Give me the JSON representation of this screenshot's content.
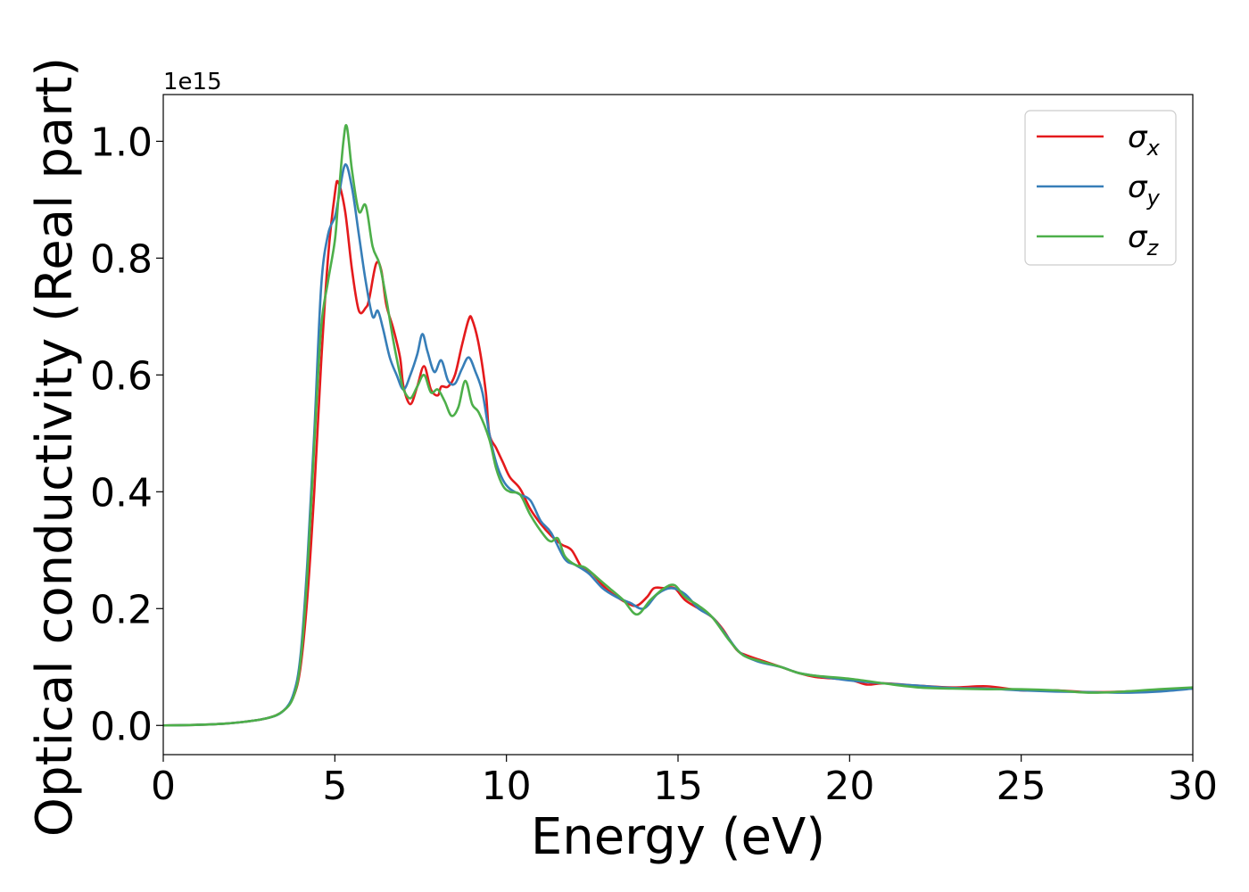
{
  "chart_data": {
    "type": "line",
    "xlabel": "Energy (eV)",
    "ylabel": "Optical conductivity (Real part)",
    "y_offset_label": "1e15",
    "xlim": [
      0,
      30
    ],
    "ylim": [
      -0.05,
      1.08
    ],
    "x_ticks": [
      0,
      5,
      10,
      15,
      20,
      25,
      30
    ],
    "x_tick_labels": [
      "0",
      "5",
      "10",
      "15",
      "20",
      "25",
      "30"
    ],
    "y_ticks": [
      0.0,
      0.2,
      0.4,
      0.6,
      0.8,
      1.0
    ],
    "y_tick_labels": [
      "0.0",
      "0.2",
      "0.4",
      "0.6",
      "0.8",
      "1.0"
    ],
    "grid": false,
    "legend_position": "top-right",
    "series": [
      {
        "name": "σ",
        "subscript": "x",
        "color": "#e41a1c",
        "points": [
          [
            0,
            0
          ],
          [
            1,
            0.001
          ],
          [
            2,
            0.004
          ],
          [
            3,
            0.012
          ],
          [
            3.5,
            0.025
          ],
          [
            3.8,
            0.05
          ],
          [
            4.0,
            0.1
          ],
          [
            4.2,
            0.22
          ],
          [
            4.4,
            0.4
          ],
          [
            4.6,
            0.62
          ],
          [
            4.8,
            0.8
          ],
          [
            5.0,
            0.91
          ],
          [
            5.1,
            0.93
          ],
          [
            5.3,
            0.88
          ],
          [
            5.5,
            0.78
          ],
          [
            5.7,
            0.71
          ],
          [
            5.9,
            0.715
          ],
          [
            6.0,
            0.73
          ],
          [
            6.2,
            0.79
          ],
          [
            6.35,
            0.78
          ],
          [
            6.5,
            0.72
          ],
          [
            6.7,
            0.68
          ],
          [
            6.9,
            0.63
          ],
          [
            7.0,
            0.58
          ],
          [
            7.2,
            0.55
          ],
          [
            7.4,
            0.58
          ],
          [
            7.6,
            0.615
          ],
          [
            7.8,
            0.575
          ],
          [
            8.0,
            0.565
          ],
          [
            8.1,
            0.58
          ],
          [
            8.3,
            0.58
          ],
          [
            8.5,
            0.6
          ],
          [
            8.7,
            0.65
          ],
          [
            8.9,
            0.695
          ],
          [
            9.0,
            0.695
          ],
          [
            9.2,
            0.65
          ],
          [
            9.4,
            0.57
          ],
          [
            9.5,
            0.5
          ],
          [
            9.7,
            0.475
          ],
          [
            9.9,
            0.45
          ],
          [
            10.1,
            0.425
          ],
          [
            10.4,
            0.405
          ],
          [
            10.7,
            0.37
          ],
          [
            11.0,
            0.345
          ],
          [
            11.3,
            0.325
          ],
          [
            11.6,
            0.31
          ],
          [
            11.9,
            0.3
          ],
          [
            12.2,
            0.27
          ],
          [
            12.5,
            0.26
          ],
          [
            12.8,
            0.24
          ],
          [
            13.1,
            0.225
          ],
          [
            13.5,
            0.21
          ],
          [
            13.8,
            0.205
          ],
          [
            14.1,
            0.22
          ],
          [
            14.3,
            0.235
          ],
          [
            14.6,
            0.235
          ],
          [
            14.9,
            0.235
          ],
          [
            15.2,
            0.215
          ],
          [
            15.6,
            0.2
          ],
          [
            16.0,
            0.185
          ],
          [
            16.3,
            0.165
          ],
          [
            16.7,
            0.13
          ],
          [
            17.0,
            0.12
          ],
          [
            17.5,
            0.11
          ],
          [
            18.0,
            0.1
          ],
          [
            18.5,
            0.09
          ],
          [
            19.0,
            0.083
          ],
          [
            20.0,
            0.078
          ],
          [
            20.5,
            0.07
          ],
          [
            21,
            0.072
          ],
          [
            22,
            0.068
          ],
          [
            23,
            0.065
          ],
          [
            24,
            0.067
          ],
          [
            25,
            0.06
          ],
          [
            26,
            0.06
          ],
          [
            27,
            0.057
          ],
          [
            28,
            0.058
          ],
          [
            29,
            0.06
          ],
          [
            29.5,
            0.063
          ],
          [
            30,
            0.063
          ]
        ]
      },
      {
        "name": "σ",
        "subscript": "y",
        "color": "#377eb8",
        "points": [
          [
            0,
            0
          ],
          [
            1,
            0.001
          ],
          [
            2,
            0.004
          ],
          [
            3,
            0.012
          ],
          [
            3.5,
            0.025
          ],
          [
            3.8,
            0.055
          ],
          [
            4.0,
            0.12
          ],
          [
            4.2,
            0.28
          ],
          [
            4.4,
            0.5
          ],
          [
            4.6,
            0.75
          ],
          [
            4.8,
            0.84
          ],
          [
            5.0,
            0.87
          ],
          [
            5.1,
            0.9
          ],
          [
            5.3,
            0.96
          ],
          [
            5.5,
            0.92
          ],
          [
            5.7,
            0.84
          ],
          [
            5.9,
            0.76
          ],
          [
            6.1,
            0.7
          ],
          [
            6.25,
            0.71
          ],
          [
            6.4,
            0.68
          ],
          [
            6.6,
            0.63
          ],
          [
            6.8,
            0.6
          ],
          [
            7.0,
            0.575
          ],
          [
            7.2,
            0.6
          ],
          [
            7.4,
            0.635
          ],
          [
            7.55,
            0.67
          ],
          [
            7.7,
            0.64
          ],
          [
            7.9,
            0.605
          ],
          [
            8.1,
            0.625
          ],
          [
            8.3,
            0.59
          ],
          [
            8.5,
            0.585
          ],
          [
            8.7,
            0.61
          ],
          [
            8.9,
            0.63
          ],
          [
            9.1,
            0.605
          ],
          [
            9.3,
            0.57
          ],
          [
            9.5,
            0.5
          ],
          [
            9.7,
            0.45
          ],
          [
            9.9,
            0.42
          ],
          [
            10.1,
            0.405
          ],
          [
            10.4,
            0.395
          ],
          [
            10.7,
            0.385
          ],
          [
            11.0,
            0.35
          ],
          [
            11.3,
            0.33
          ],
          [
            11.7,
            0.285
          ],
          [
            12.0,
            0.275
          ],
          [
            12.4,
            0.26
          ],
          [
            12.8,
            0.235
          ],
          [
            13.2,
            0.22
          ],
          [
            13.6,
            0.21
          ],
          [
            14.0,
            0.2
          ],
          [
            14.4,
            0.225
          ],
          [
            14.8,
            0.235
          ],
          [
            15.2,
            0.225
          ],
          [
            15.6,
            0.2
          ],
          [
            16.0,
            0.185
          ],
          [
            16.4,
            0.155
          ],
          [
            16.8,
            0.125
          ],
          [
            17.3,
            0.11
          ],
          [
            18.0,
            0.1
          ],
          [
            18.5,
            0.09
          ],
          [
            19.0,
            0.085
          ],
          [
            20.0,
            0.077
          ],
          [
            21,
            0.072
          ],
          [
            22,
            0.068
          ],
          [
            23,
            0.064
          ],
          [
            24,
            0.063
          ],
          [
            25,
            0.06
          ],
          [
            26,
            0.058
          ],
          [
            27,
            0.057
          ],
          [
            28,
            0.056
          ],
          [
            29,
            0.058
          ],
          [
            30,
            0.063
          ]
        ]
      },
      {
        "name": "σ",
        "subscript": "z",
        "color": "#4daf4a",
        "points": [
          [
            0,
            0
          ],
          [
            1,
            0.001
          ],
          [
            2,
            0.004
          ],
          [
            3,
            0.012
          ],
          [
            3.5,
            0.025
          ],
          [
            3.8,
            0.05
          ],
          [
            4.0,
            0.11
          ],
          [
            4.2,
            0.26
          ],
          [
            4.4,
            0.48
          ],
          [
            4.6,
            0.68
          ],
          [
            4.8,
            0.76
          ],
          [
            5.0,
            0.83
          ],
          [
            5.1,
            0.9
          ],
          [
            5.25,
            1.0
          ],
          [
            5.35,
            1.025
          ],
          [
            5.5,
            0.95
          ],
          [
            5.7,
            0.88
          ],
          [
            5.9,
            0.89
          ],
          [
            6.1,
            0.82
          ],
          [
            6.3,
            0.79
          ],
          [
            6.5,
            0.73
          ],
          [
            6.7,
            0.66
          ],
          [
            6.9,
            0.6
          ],
          [
            7.0,
            0.575
          ],
          [
            7.2,
            0.56
          ],
          [
            7.4,
            0.58
          ],
          [
            7.6,
            0.6
          ],
          [
            7.8,
            0.57
          ],
          [
            8.0,
            0.575
          ],
          [
            8.2,
            0.555
          ],
          [
            8.4,
            0.53
          ],
          [
            8.6,
            0.545
          ],
          [
            8.8,
            0.59
          ],
          [
            9.0,
            0.55
          ],
          [
            9.2,
            0.535
          ],
          [
            9.5,
            0.49
          ],
          [
            9.7,
            0.44
          ],
          [
            9.9,
            0.41
          ],
          [
            10.1,
            0.4
          ],
          [
            10.4,
            0.395
          ],
          [
            10.7,
            0.36
          ],
          [
            11.1,
            0.325
          ],
          [
            11.3,
            0.315
          ],
          [
            11.5,
            0.32
          ],
          [
            11.7,
            0.29
          ],
          [
            12.0,
            0.275
          ],
          [
            12.3,
            0.27
          ],
          [
            12.7,
            0.25
          ],
          [
            13.0,
            0.235
          ],
          [
            13.4,
            0.215
          ],
          [
            13.8,
            0.19
          ],
          [
            14.2,
            0.215
          ],
          [
            14.6,
            0.235
          ],
          [
            14.9,
            0.24
          ],
          [
            15.2,
            0.22
          ],
          [
            15.6,
            0.205
          ],
          [
            16.0,
            0.185
          ],
          [
            16.5,
            0.145
          ],
          [
            16.9,
            0.12
          ],
          [
            17.4,
            0.11
          ],
          [
            18.0,
            0.1
          ],
          [
            18.5,
            0.09
          ],
          [
            19.0,
            0.085
          ],
          [
            20.0,
            0.08
          ],
          [
            21,
            0.072
          ],
          [
            22,
            0.065
          ],
          [
            23,
            0.063
          ],
          [
            24,
            0.062
          ],
          [
            25,
            0.062
          ],
          [
            26,
            0.06
          ],
          [
            27,
            0.056
          ],
          [
            28,
            0.058
          ],
          [
            29,
            0.062
          ],
          [
            30,
            0.065
          ]
        ]
      }
    ]
  }
}
